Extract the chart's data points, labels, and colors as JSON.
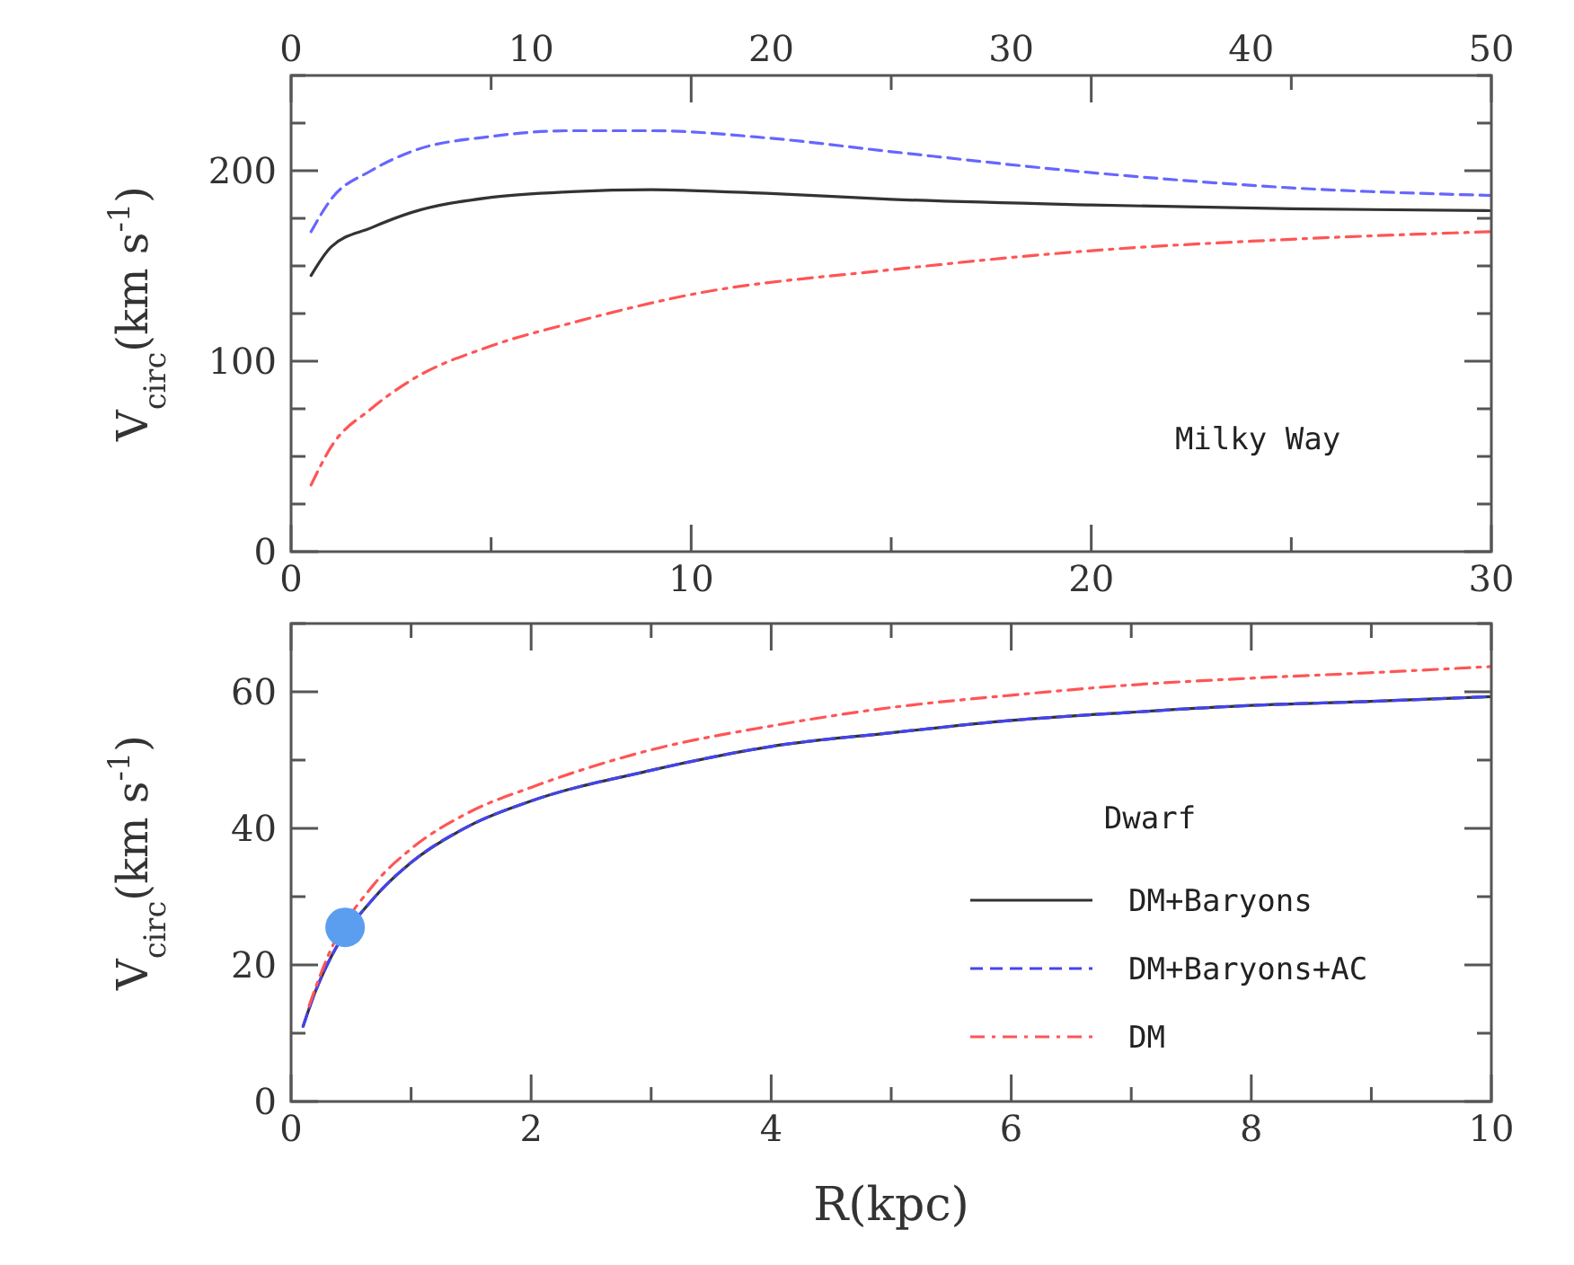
{
  "chart_data": [
    {
      "type": "line",
      "ylabel": "V$_{circ}$(km s$^{-1}$)",
      "annotations": [
        "Milky Way"
      ],
      "legend": false,
      "grid": false,
      "xlim": [
        0,
        30
      ],
      "xticks": [
        0,
        {
          "value": 5,
          "label": null
        },
        10,
        {
          "value": 15,
          "label": null
        },
        20,
        {
          "value": 25,
          "label": null
        },
        30
      ],
      "x2lim": [
        0,
        50
      ],
      "x2ticks": [
        0,
        10,
        20,
        30,
        40,
        50
      ],
      "ylim": [
        0,
        250
      ],
      "yticks": [
        0,
        {
          "value": 25,
          "label": null
        },
        {
          "value": 50,
          "label": null
        },
        {
          "value": 75,
          "label": null
        },
        100,
        {
          "value": 125,
          "label": null
        },
        {
          "value": 150,
          "label": null
        },
        {
          "value": 175,
          "label": null
        },
        200,
        {
          "value": 225,
          "label": null
        },
        {
          "value": 250,
          "label": null
        }
      ],
      "series": [
        {
          "color": "#333333",
          "line_style": "solid",
          "x": [
            0.5,
            1,
            2,
            3,
            5,
            7,
            9,
            12,
            15,
            20,
            25,
            30
          ],
          "values": [
            145,
            160,
            170,
            178,
            186,
            189,
            190,
            188,
            185,
            182,
            180,
            179
          ]
        },
        {
          "color": "#6666ff",
          "line_style": "dashed",
          "x": [
            0.5,
            1,
            2,
            3,
            5,
            7,
            9,
            12,
            15,
            20,
            25,
            30
          ],
          "values": [
            168,
            185,
            200,
            210,
            218,
            221,
            221,
            217,
            210,
            199,
            191,
            187
          ]
        },
        {
          "color": "#ff5555",
          "line_style": "dashdot",
          "x": [
            0.5,
            1,
            2,
            3,
            5,
            7,
            10,
            15,
            20,
            25,
            30
          ],
          "values": [
            35,
            55,
            75,
            90,
            108,
            120,
            135,
            148,
            158,
            164,
            168
          ]
        }
      ]
    },
    {
      "type": "line",
      "xlabel": "R(kpc)",
      "ylabel": "V$_{circ}$(km s$^{-1}$)",
      "annotations": [
        "Dwarf"
      ],
      "legend": "bottom right",
      "grid": false,
      "xlim": [
        0,
        10
      ],
      "xticks": [
        0,
        {
          "value": 1,
          "label": null
        },
        2,
        {
          "value": 3,
          "label": null
        },
        4,
        {
          "value": 5,
          "label": null
        },
        6,
        {
          "value": 7,
          "label": null
        },
        8,
        {
          "value": 9,
          "label": null
        },
        10
      ],
      "ylim": [
        0,
        70
      ],
      "yticks": [
        0,
        {
          "value": 10,
          "label": null
        },
        20,
        {
          "value": 30,
          "label": null
        },
        40,
        {
          "value": 50,
          "label": null
        },
        60,
        {
          "value": 70,
          "label": null
        }
      ],
      "series": [
        {
          "name": "DM+Baryons",
          "color": "#333333",
          "line_style": "solid",
          "x": [
            0.1,
            0.2,
            0.3,
            0.7,
            1,
            1.5,
            2,
            3,
            4,
            5,
            6,
            7,
            8,
            9,
            10
          ],
          "values": [
            11,
            16,
            20,
            30,
            35,
            40.5,
            44,
            48.5,
            52,
            54,
            55.8,
            57,
            58,
            58.6,
            59.3
          ]
        },
        {
          "name": "DM+Baryons+AC",
          "color": "#4444ee",
          "line_style": "dashed",
          "x": [
            0.1,
            0.2,
            0.3,
            0.7,
            1,
            1.5,
            2,
            3,
            4,
            5,
            6,
            7,
            8,
            9,
            10
          ],
          "values": [
            11,
            16,
            20,
            30,
            35,
            40.5,
            44,
            48.5,
            52,
            54,
            55.8,
            57,
            58,
            58.6,
            59.3
          ]
        },
        {
          "name": "DM",
          "color": "#ff5555",
          "line_style": "dashdot",
          "x": [
            0.15,
            0.3,
            0.7,
            1,
            1.5,
            2,
            3,
            4,
            5,
            6,
            7,
            8,
            9,
            10
          ],
          "values": [
            14,
            21,
            32,
            37,
            42.5,
            46,
            51.5,
            55,
            57.7,
            59.5,
            61,
            62,
            62.8,
            63.7
          ]
        },
        {
          "type": "scatter",
          "marker": "circle",
          "color": "#5b9ef0",
          "x": [
            0.45
          ],
          "values": [
            25.5
          ]
        }
      ]
    }
  ]
}
